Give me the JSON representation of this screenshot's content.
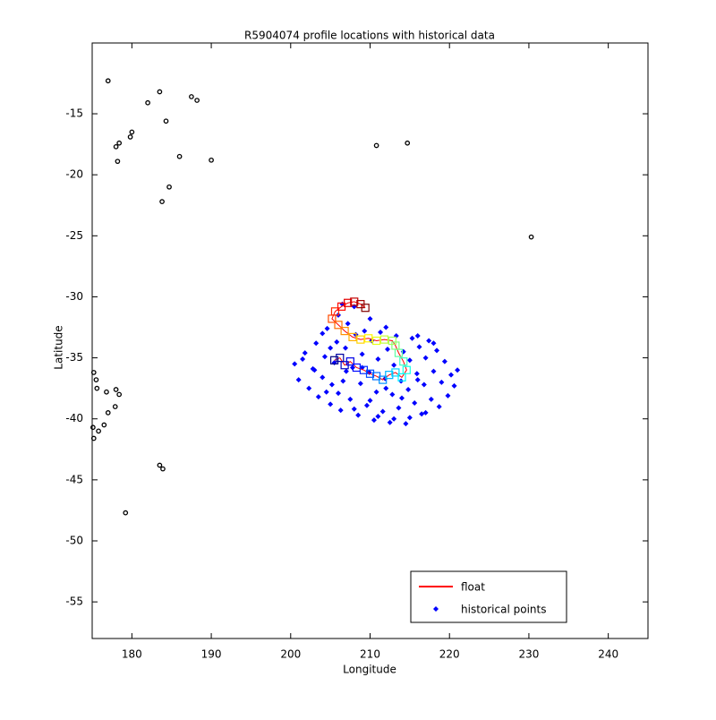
{
  "chart_data": {
    "type": "scatter",
    "title": "R5904074 profile locations with historical data",
    "xlabel": "Longitude",
    "ylabel": "Latitude",
    "xlim": [
      175,
      245
    ],
    "ylim": [
      -58,
      -9.2
    ],
    "xticks": [
      180,
      190,
      200,
      210,
      220,
      230,
      240
    ],
    "yticks": [
      -15,
      -20,
      -25,
      -30,
      -35,
      -40,
      -45,
      -50,
      -55
    ],
    "legend": "lower right",
    "series": [
      {
        "name": "float",
        "color": "#ff0000",
        "x": [
          205.5,
          206.2,
          206.8,
          207.5,
          208.3,
          209.2,
          210.0,
          210.8,
          211.6,
          212.4,
          213.2,
          214.0,
          214.6,
          214.2,
          213.6,
          213.2,
          212.8,
          211.8,
          210.8,
          209.8,
          208.8,
          207.8,
          206.8,
          206.0,
          205.2,
          205.6,
          206.4,
          207.2,
          208.0,
          208.8,
          209.4
        ],
        "y": [
          -35.2,
          -35.0,
          -35.6,
          -35.3,
          -35.8,
          -36.0,
          -36.3,
          -36.5,
          -36.8,
          -36.4,
          -36.2,
          -36.6,
          -36.0,
          -35.3,
          -34.6,
          -34.0,
          -33.6,
          -33.5,
          -33.6,
          -33.4,
          -33.5,
          -33.3,
          -32.8,
          -32.3,
          -31.8,
          -31.2,
          -30.8,
          -30.5,
          -30.4,
          -30.6,
          -30.9
        ]
      },
      {
        "name": "historical points",
        "color": "#0000ff",
        "x": [
          200.5,
          201,
          201.8,
          202.3,
          202.8,
          203.2,
          203.5,
          204,
          204.3,
          204.6,
          205,
          205.2,
          205.5,
          205.8,
          206,
          206.3,
          206.6,
          206.9,
          207.2,
          207.5,
          207.8,
          208,
          208.2,
          208.5,
          208.8,
          209,
          209.3,
          209.6,
          209.9,
          210.2,
          210.5,
          210.8,
          211,
          211.3,
          211.6,
          211.9,
          212.2,
          212.5,
          212.8,
          213,
          213.3,
          213.6,
          213.9,
          214.2,
          214.5,
          214.8,
          215,
          215.3,
          215.6,
          215.9,
          216.2,
          216.5,
          216.8,
          217,
          217.4,
          217.7,
          218,
          218.4,
          218.7,
          219,
          219.4,
          219.8,
          220.2,
          220.6,
          221,
          203,
          204.5,
          206,
          207,
          209,
          210,
          212,
          214,
          216,
          201.5,
          208,
          211,
          213,
          215,
          217,
          205,
          216,
          218,
          204,
          206.5,
          210,
          212
        ],
        "y": [
          -35.5,
          -36.8,
          -34.6,
          -37.5,
          -35.9,
          -33.8,
          -38.2,
          -36.6,
          -34.9,
          -32.6,
          -38.8,
          -37.2,
          -35.4,
          -33.7,
          -31.5,
          -39.3,
          -36.9,
          -34.2,
          -32.2,
          -38.4,
          -35.8,
          -30.8,
          -33.1,
          -39.7,
          -37.1,
          -34.7,
          -32.8,
          -38.9,
          -36.2,
          -33.6,
          -40.1,
          -37.8,
          -35.1,
          -32.9,
          -39.4,
          -36.7,
          -34.3,
          -40.3,
          -38.0,
          -35.6,
          -33.2,
          -39.1,
          -36.9,
          -34.5,
          -40.4,
          -37.6,
          -35.2,
          -33.4,
          -38.7,
          -36.3,
          -34.1,
          -39.6,
          -37.2,
          -35.0,
          -33.6,
          -38.4,
          -36.1,
          -34.4,
          -39.0,
          -37.0,
          -35.3,
          -38.1,
          -36.4,
          -37.3,
          -36.0,
          -36.0,
          -37.8,
          -37.9,
          -36.1,
          -35.8,
          -38.5,
          -37.5,
          -38.3,
          -36.8,
          -35.1,
          -39.2,
          -39.8,
          -40.0,
          -39.9,
          -39.5,
          -34.2,
          -33.2,
          -33.8,
          -33.0,
          -30.6,
          -31.8,
          -32.5
        ]
      }
    ],
    "coastline": {
      "color": "#000000",
      "x": [
        177,
        178,
        178.2,
        178.4,
        180,
        179.8,
        182,
        183.5,
        184.3,
        187.5,
        188.2,
        186,
        190,
        184.7,
        183.8,
        210.8,
        214.7,
        230.3,
        183.5,
        183.9,
        179.2,
        175.2,
        175.5,
        175.6,
        176.8,
        178,
        178.4,
        177.9,
        177,
        176.5,
        175.8,
        175.2,
        175.1
      ],
      "y": [
        -12.3,
        -17.7,
        -18.9,
        -17.4,
        -16.5,
        -16.9,
        -14.1,
        -13.2,
        -15.6,
        -13.6,
        -13.9,
        -18.5,
        -18.8,
        -21,
        -22.2,
        -17.6,
        -17.4,
        -25.1,
        -43.8,
        -44.1,
        -47.7,
        -36.2,
        -36.8,
        -37.5,
        -37.8,
        -37.6,
        -38,
        -39.0,
        -39.5,
        -40.5,
        -41.0,
        -41.6,
        -40.7
      ]
    }
  }
}
